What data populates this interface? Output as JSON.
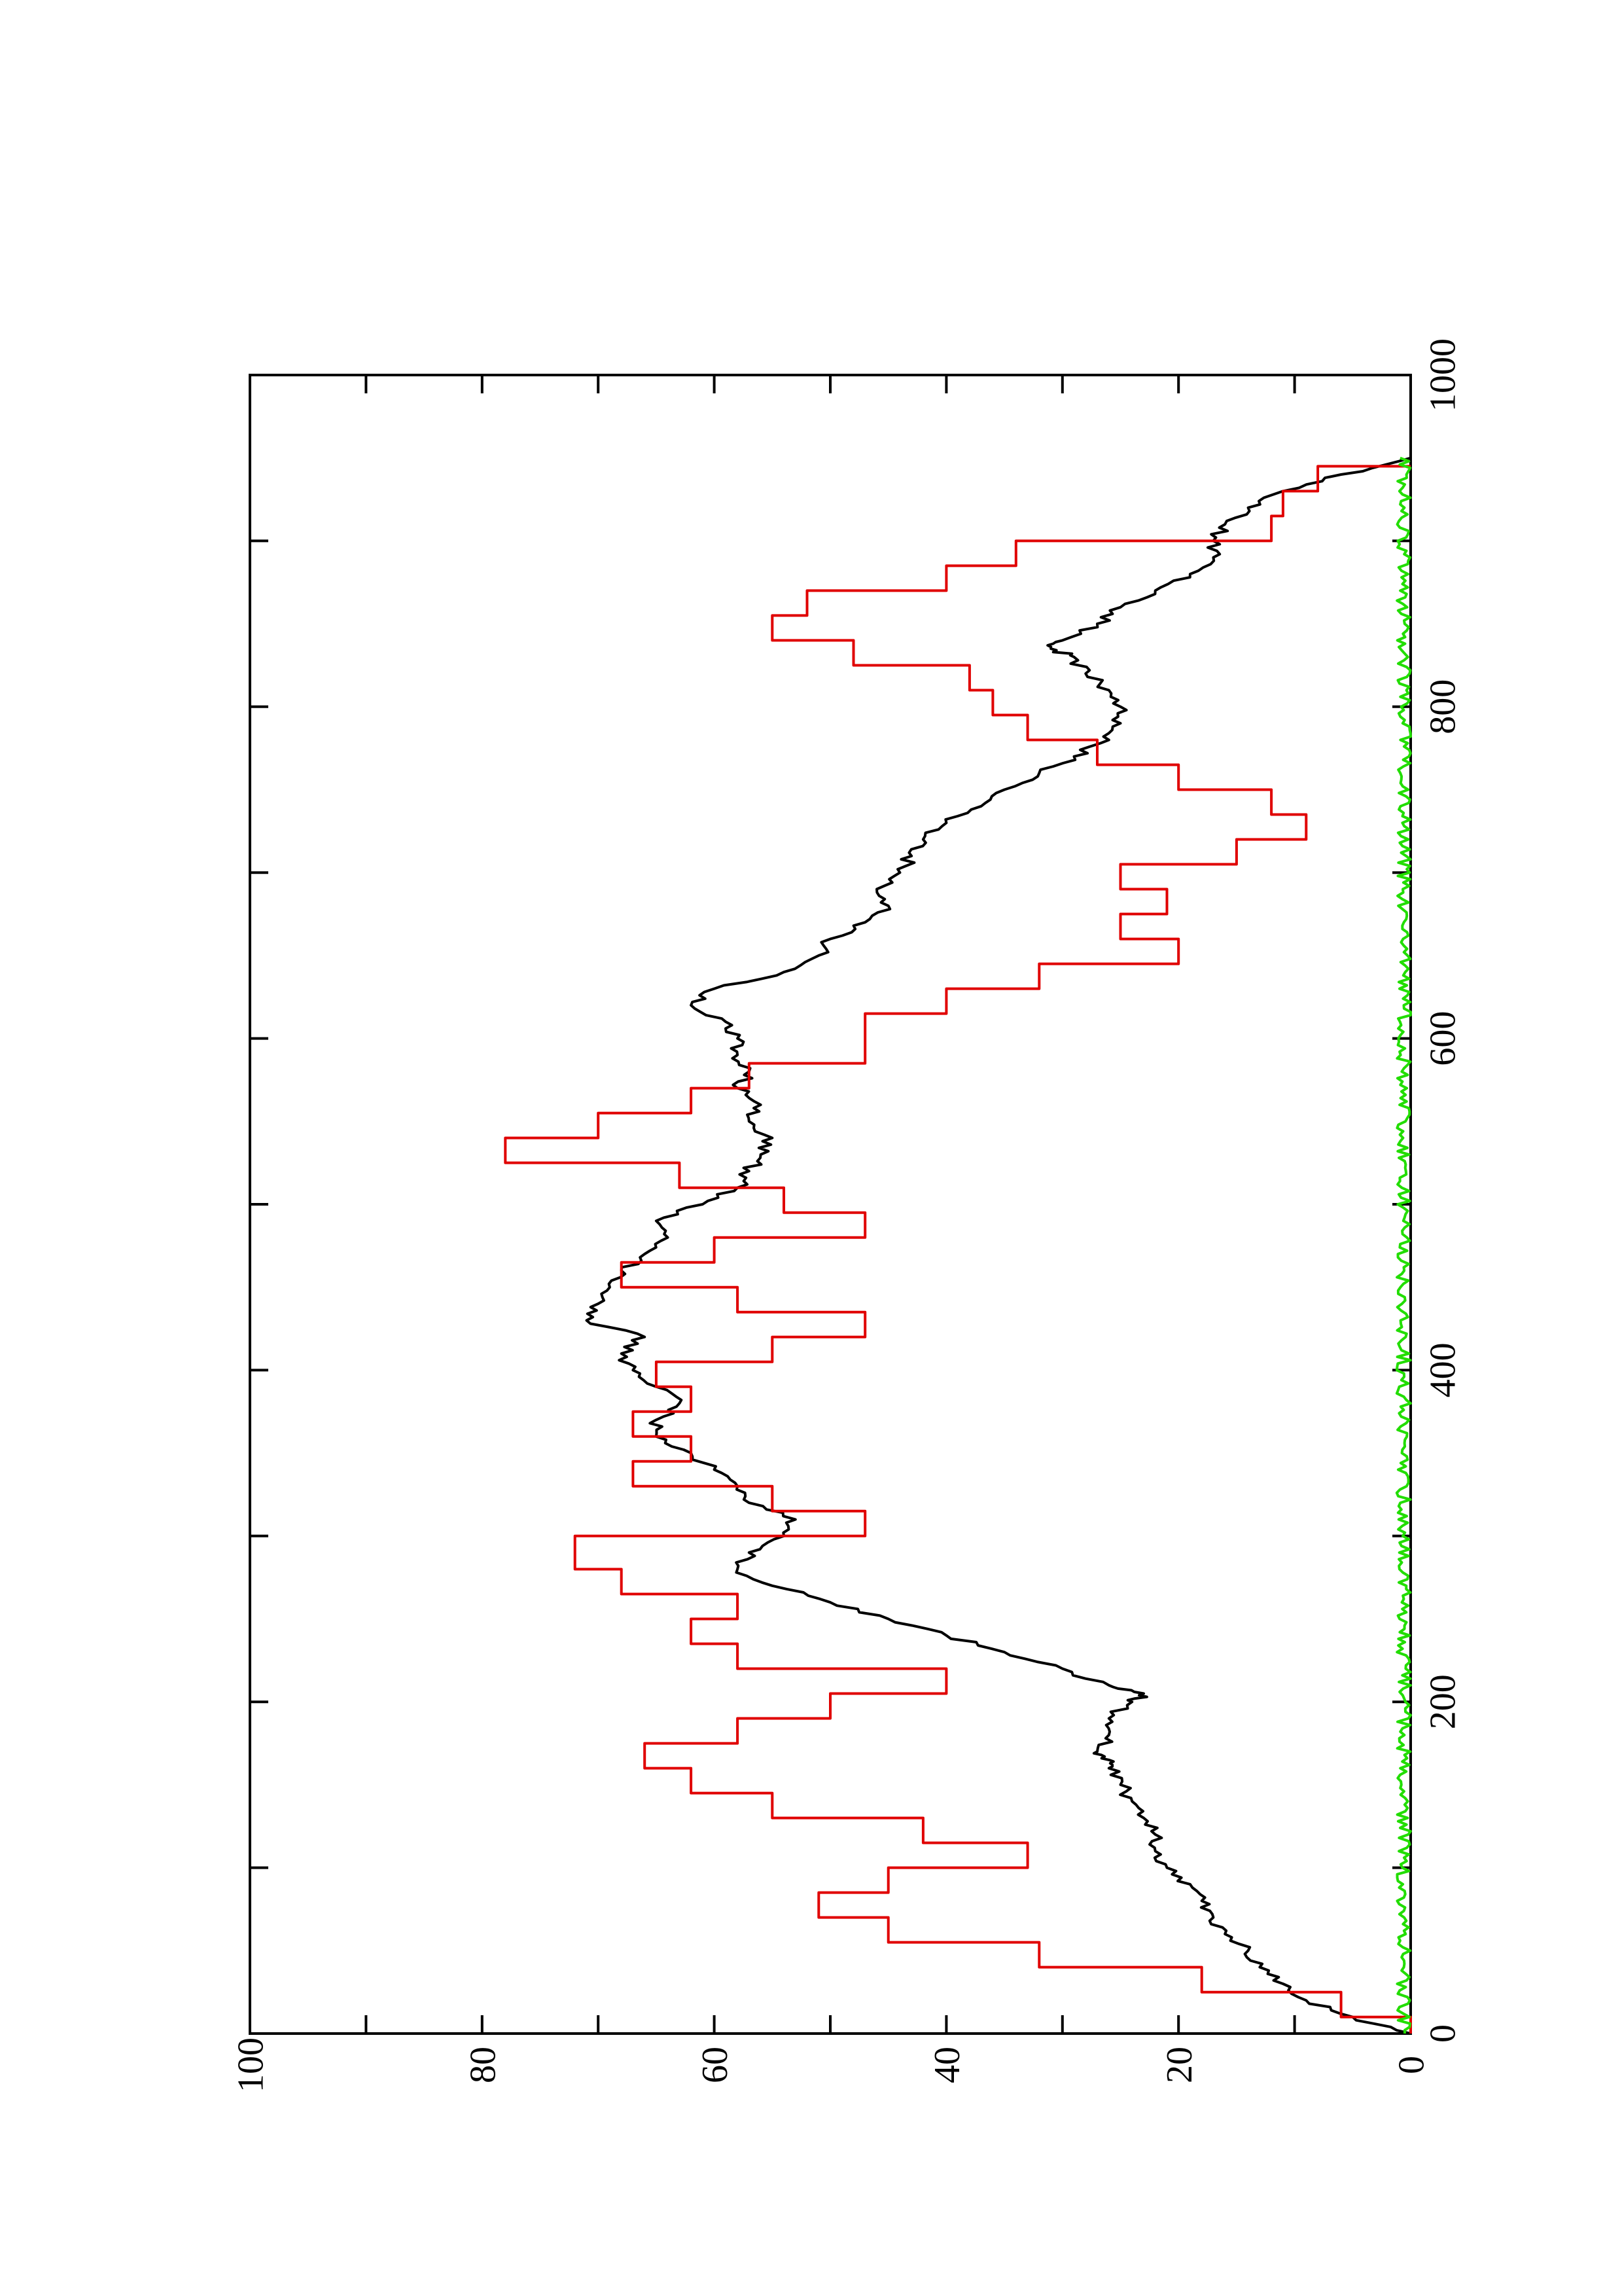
{
  "chart_data": {
    "type": "line",
    "title": "",
    "xlabel": "",
    "ylabel": "",
    "xlim": [
      0,
      1000
    ],
    "ylim": [
      0,
      100
    ],
    "grid": false,
    "legend": "none",
    "orientation": "rotated-90-ccw",
    "x_ticks": [
      "0",
      "200",
      "400",
      "600",
      "800",
      "1000"
    ],
    "y_ticks": [
      "0",
      "20",
      "40",
      "60",
      "80",
      "100"
    ],
    "colors": {
      "black": "#000000",
      "red": "#e00000",
      "green": "#22dd00"
    },
    "series": [
      {
        "color": "#000000",
        "style": "smooth",
        "x": [
          0,
          10,
          20,
          30,
          40,
          50,
          60,
          70,
          80,
          90,
          100,
          110,
          120,
          130,
          140,
          150,
          160,
          165,
          170,
          180,
          190,
          200,
          205,
          210,
          220,
          230,
          240,
          250,
          260,
          270,
          280,
          290,
          300,
          310,
          320,
          330,
          340,
          350,
          360,
          370,
          380,
          390,
          400,
          410,
          420,
          430,
          440,
          450,
          460,
          470,
          480,
          490,
          500,
          510,
          520,
          530,
          540,
          550,
          560,
          570,
          580,
          590,
          600,
          610,
          620,
          630,
          640,
          650,
          660,
          670,
          680,
          690,
          700,
          710,
          720,
          730,
          740,
          750,
          760,
          770,
          780,
          790,
          800,
          810,
          820,
          830,
          835,
          840,
          850,
          860,
          870,
          880,
          890,
          900,
          910,
          920,
          930,
          940,
          950
        ],
        "y": [
          0,
          5,
          9,
          11,
          13,
          14,
          16,
          17,
          18,
          19,
          21,
          22,
          22,
          23,
          24,
          25,
          26,
          26,
          27,
          26,
          26,
          24,
          23,
          26,
          30,
          35,
          40,
          45,
          50,
          55,
          58,
          57,
          54,
          53,
          57,
          58,
          60,
          62,
          65,
          65,
          63,
          65,
          67,
          68,
          66,
          71,
          70,
          69,
          68,
          66,
          64,
          65,
          61,
          58,
          57,
          56,
          55,
          57,
          56,
          58,
          57,
          58,
          58,
          59,
          62,
          60,
          54,
          51,
          50,
          47,
          45,
          46,
          44,
          43,
          42,
          40,
          37,
          35,
          32,
          29,
          26,
          25,
          25,
          26,
          28,
          29,
          31,
          30,
          27,
          25,
          22,
          19,
          17,
          17,
          16,
          14,
          11,
          6,
          0
        ]
      },
      {
        "color": "#e00000",
        "style": "step",
        "x": [
          0,
          10,
          25,
          40,
          55,
          70,
          85,
          100,
          115,
          130,
          145,
          160,
          175,
          190,
          205,
          220,
          235,
          250,
          265,
          280,
          300,
          315,
          330,
          345,
          360,
          375,
          390,
          405,
          420,
          435,
          450,
          465,
          480,
          495,
          510,
          525,
          540,
          555,
          570,
          585,
          600,
          615,
          630,
          645,
          660,
          675,
          690,
          705,
          720,
          735,
          750,
          765,
          780,
          795,
          810,
          825,
          840,
          855,
          870,
          885,
          900,
          915,
          930,
          945
        ],
        "y": [
          0,
          6,
          18,
          32,
          45,
          51,
          45,
          33,
          42,
          55,
          62,
          66,
          58,
          50,
          40,
          58,
          62,
          58,
          68,
          72,
          47,
          55,
          67,
          62,
          67,
          62,
          65,
          55,
          47,
          58,
          68,
          60,
          47,
          54,
          63,
          78,
          70,
          62,
          57,
          47,
          47,
          40,
          32,
          20,
          25,
          21,
          25,
          15,
          9,
          12,
          20,
          27,
          33,
          36,
          38,
          48,
          55,
          52,
          40,
          34,
          12,
          11,
          8,
          0
        ]
      },
      {
        "color": "#22dd00",
        "style": "noise",
        "amplitude": 1.0,
        "x": [
          0,
          950
        ],
        "y": [
          0,
          0
        ]
      }
    ]
  }
}
